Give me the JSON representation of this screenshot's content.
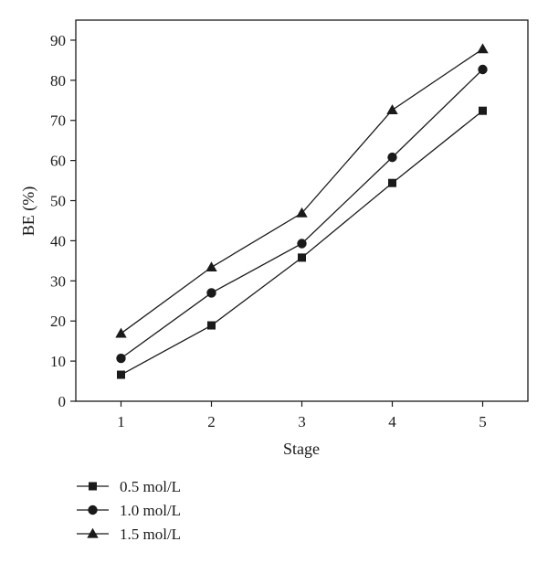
{
  "chart_data": {
    "type": "line",
    "title": "",
    "xlabel": "Stage",
    "ylabel": "BE (%)",
    "x": [
      1,
      2,
      3,
      4,
      5
    ],
    "xlim": [
      0.5,
      5.5
    ],
    "ylim": [
      0,
      95
    ],
    "xticks": [
      "1",
      "2",
      "3",
      "4",
      "5"
    ],
    "yticks": [
      "0",
      "10",
      "20",
      "30",
      "40",
      "50",
      "60",
      "70",
      "80",
      "90"
    ],
    "grid": false,
    "legend_position": "bottom-left, below plot",
    "series": [
      {
        "name": "0.5 mol/L",
        "marker": "square",
        "values": [
          6.6,
          18.9,
          35.8,
          54.4,
          72.4
        ]
      },
      {
        "name": "1.0 mol/L",
        "marker": "circle",
        "values": [
          10.7,
          27.0,
          39.3,
          60.8,
          82.7
        ]
      },
      {
        "name": "1.5 mol/L",
        "marker": "triangle",
        "values": [
          16.9,
          33.4,
          46.9,
          72.6,
          87.8
        ]
      }
    ],
    "colors": {
      "line": "#1a1a1a",
      "background": "#ffffff"
    }
  }
}
